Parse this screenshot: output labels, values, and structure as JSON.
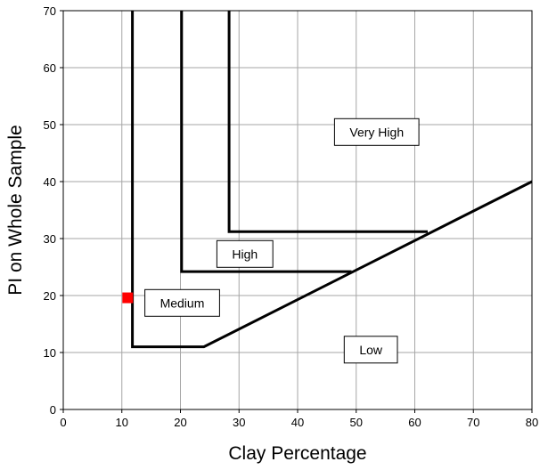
{
  "chart_data": {
    "type": "line",
    "xlabel": "Clay Percentage",
    "ylabel": "PI on Whole Sample",
    "xlim": [
      0,
      80
    ],
    "ylim": [
      0,
      70
    ],
    "x_ticks": [
      0,
      10,
      20,
      30,
      40,
      50,
      60,
      70,
      80
    ],
    "y_ticks": [
      0,
      10,
      20,
      30,
      40,
      50,
      60,
      70
    ],
    "grid": true,
    "boundaries": [
      {
        "points": [
          [
            11.8,
            70
          ],
          [
            11.8,
            11
          ],
          [
            24,
            11
          ],
          [
            80,
            40
          ]
        ]
      },
      {
        "points": [
          [
            20.2,
            70
          ],
          [
            20.2,
            24.2
          ],
          [
            49.2,
            24.2
          ]
        ]
      },
      {
        "points": [
          [
            28.3,
            70
          ],
          [
            28.3,
            31.2
          ],
          [
            62.2,
            31.2
          ]
        ]
      }
    ],
    "zones": [
      {
        "label": "Low",
        "x": 52.5,
        "y": 10.5
      },
      {
        "label": "Medium",
        "x": 20.3,
        "y": 18.7
      },
      {
        "label": "High",
        "x": 31.0,
        "y": 27.3
      },
      {
        "label": "Very High",
        "x": 53.5,
        "y": 48.7
      }
    ],
    "marker": {
      "x": 11,
      "y": 19.6,
      "color": "#ff0000"
    }
  }
}
